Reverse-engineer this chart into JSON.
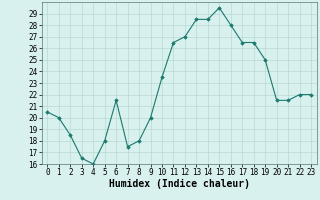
{
  "x": [
    0,
    1,
    2,
    3,
    4,
    5,
    6,
    7,
    8,
    9,
    10,
    11,
    12,
    13,
    14,
    15,
    16,
    17,
    18,
    19,
    20,
    21,
    22,
    23
  ],
  "y": [
    20.5,
    20.0,
    18.5,
    16.5,
    16.0,
    18.0,
    21.5,
    17.5,
    18.0,
    20.0,
    23.5,
    26.5,
    27.0,
    28.5,
    28.5,
    29.5,
    28.0,
    26.5,
    26.5,
    25.0,
    21.5,
    21.5,
    22.0,
    22.0
  ],
  "xlabel": "Humidex (Indice chaleur)",
  "ylim": [
    16,
    30
  ],
  "xlim": [
    -0.5,
    23.5
  ],
  "line_color": "#1a7a6e",
  "marker": "D",
  "marker_size": 1.8,
  "bg_color": "#d8f0ee",
  "grid_color": "#b8d8d4",
  "tick_labels": [
    "0",
    "1",
    "2",
    "3",
    "4",
    "5",
    "6",
    "7",
    "8",
    "9",
    "10",
    "11",
    "12",
    "13",
    "14",
    "15",
    "16",
    "17",
    "18",
    "19",
    "20",
    "21",
    "22",
    "23"
  ],
  "yticks": [
    16,
    17,
    18,
    19,
    20,
    21,
    22,
    23,
    24,
    25,
    26,
    27,
    28,
    29
  ],
  "label_fontsize": 7,
  "tick_fontsize": 5.5
}
